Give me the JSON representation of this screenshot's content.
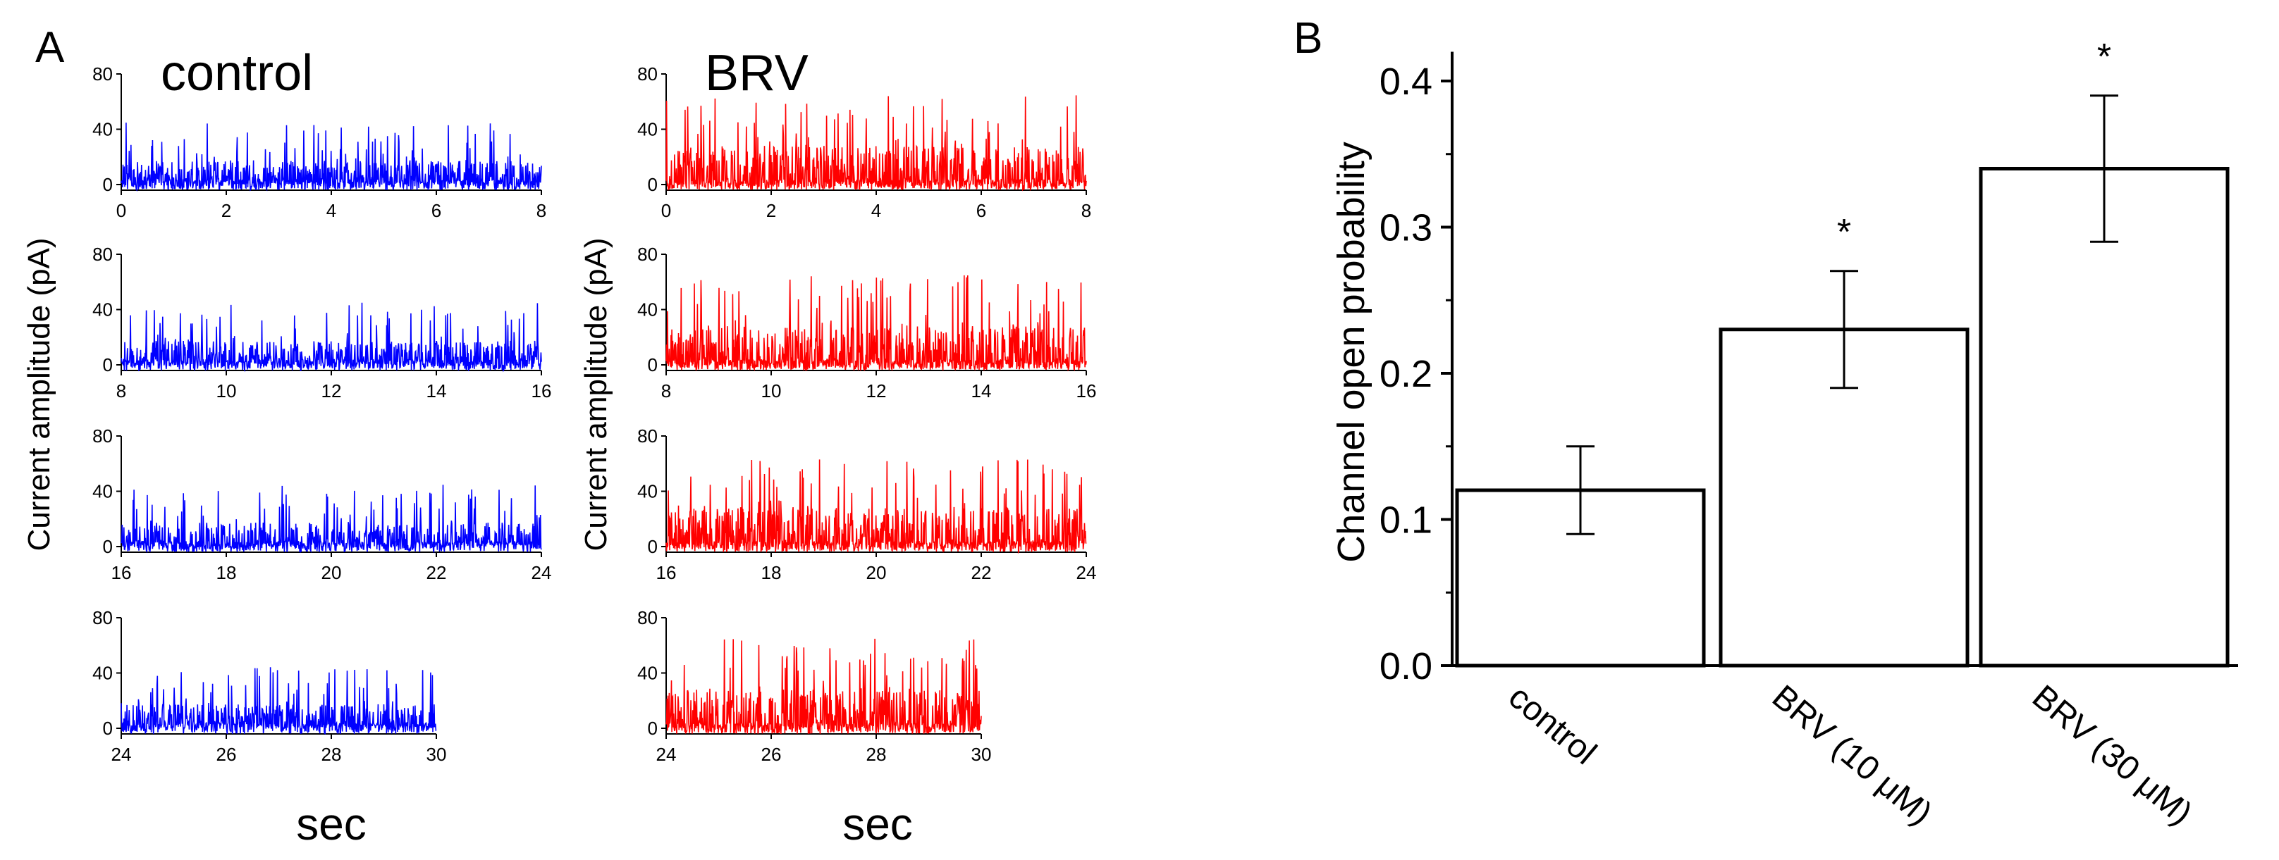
{
  "panel_a": {
    "letter": "A",
    "ylabel": "Current amplitude (pA)",
    "xlabel": "sec",
    "yticks": [
      "0",
      "40",
      "80"
    ],
    "conditions": [
      {
        "name": "control",
        "color": "#0000ff"
      },
      {
        "name": "BRV",
        "color": "#ff0000"
      }
    ],
    "rows": [
      {
        "xticks": [
          "0",
          "2",
          "4",
          "6",
          "8"
        ]
      },
      {
        "xticks": [
          "8",
          "10",
          "12",
          "14",
          "16"
        ]
      },
      {
        "xticks": [
          "16",
          "18",
          "20",
          "22",
          "24"
        ]
      },
      {
        "xticks": [
          "24",
          "26",
          "28",
          "30"
        ]
      }
    ]
  },
  "panel_b": {
    "letter": "B",
    "ylabel": "Channel open probability",
    "yticks": [
      "0.0",
      "0.1",
      "0.2",
      "0.3",
      "0.4"
    ],
    "categories": [
      "control",
      "BRV (10 μM)",
      "BRV (30 μM)"
    ],
    "significance": [
      "",
      "*",
      "*"
    ]
  },
  "chart_data": [
    {
      "type": "line",
      "panel": "A",
      "xlabel": "sec",
      "ylabel": "Current amplitude (pA)",
      "ylim": [
        0,
        80
      ],
      "series": [
        {
          "name": "control",
          "color": "#0000ff",
          "x_range": [
            0,
            30
          ],
          "baseline_pA": 0,
          "typical_peak_pA": 25,
          "max_peak_pA": 45
        },
        {
          "name": "BRV",
          "color": "#ff0000",
          "x_range": [
            0,
            30
          ],
          "baseline_pA": 0,
          "typical_peak_pA": 40,
          "max_peak_pA": 65
        }
      ],
      "segments": [
        {
          "xlim": [
            0,
            8
          ]
        },
        {
          "xlim": [
            8,
            16
          ]
        },
        {
          "xlim": [
            16,
            24
          ]
        },
        {
          "xlim": [
            24,
            30
          ]
        }
      ]
    },
    {
      "type": "bar",
      "panel": "B",
      "title": "",
      "categories": [
        "control",
        "BRV (10 μM)",
        "BRV (30 μM)"
      ],
      "values": [
        0.12,
        0.23,
        0.34
      ],
      "errors": [
        0.03,
        0.04,
        0.05
      ],
      "xlabel": "",
      "ylabel": "Channel open probability",
      "ylim": [
        0,
        0.42
      ]
    }
  ]
}
